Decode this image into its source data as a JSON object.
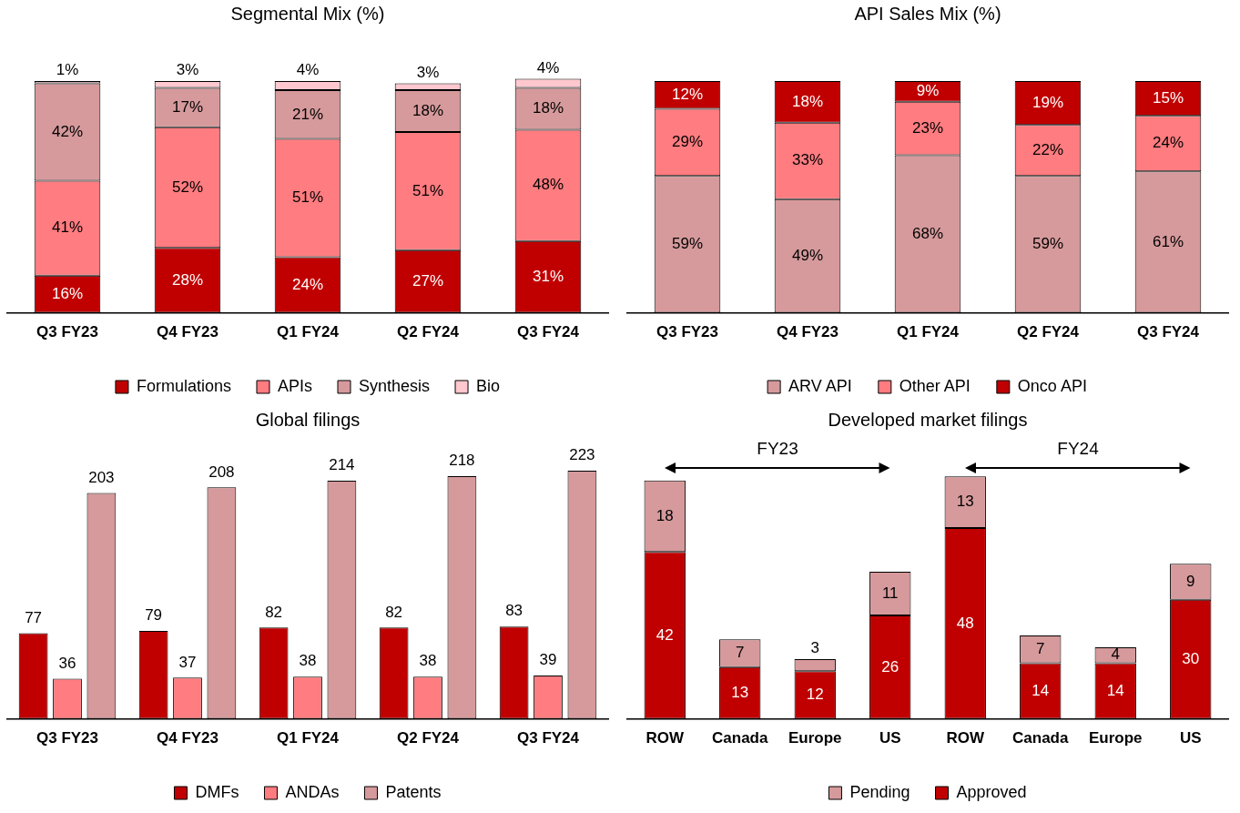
{
  "chart_data": [
    {
      "type": "bar",
      "title": "Segmental Mix (%)",
      "categories": [
        "Q3 FY23",
        "Q4 FY23",
        "Q1 FY24",
        "Q2 FY24",
        "Q3 FY24"
      ],
      "stacked": true,
      "legend": "bottom",
      "grid": false,
      "tick_labels": "x",
      "series": [
        {
          "name": "Formulations",
          "color": "#c00000",
          "values": [
            16,
            28,
            24,
            27,
            31
          ],
          "value_labels": [
            "16%",
            "28%",
            "24%",
            "27%",
            "31%"
          ]
        },
        {
          "name": "APIs",
          "color": "#ff7c80",
          "values": [
            41,
            52,
            51,
            51,
            48
          ],
          "value_labels": [
            "41%",
            "52%",
            "51%",
            "51%",
            "48%"
          ]
        },
        {
          "name": "Synthesis",
          "color": "#d69a9c",
          "values": [
            42,
            17,
            21,
            18,
            18
          ],
          "value_labels": [
            "42%",
            "17%",
            "21%",
            "18%",
            "18%"
          ]
        },
        {
          "name": "Bio",
          "color": "#ffc7ce",
          "values": [
            1,
            3,
            4,
            3,
            4
          ],
          "value_labels": [
            "1%",
            "3%",
            "4%",
            "3%",
            "4%"
          ]
        }
      ]
    },
    {
      "type": "bar",
      "title": "API Sales Mix (%)",
      "categories": [
        "Q3 FY23",
        "Q4 FY23",
        "Q1 FY24",
        "Q2 FY24",
        "Q3 FY24"
      ],
      "stacked": true,
      "legend": "bottom",
      "grid": false,
      "tick_labels": "x",
      "series": [
        {
          "name": "ARV API",
          "color": "#d69a9c",
          "values": [
            59,
            49,
            68,
            59,
            61
          ],
          "value_labels": [
            "59%",
            "49%",
            "68%",
            "59%",
            "61%"
          ]
        },
        {
          "name": "Other API",
          "color": "#ff7c80",
          "values": [
            29,
            33,
            23,
            22,
            24
          ],
          "value_labels": [
            "29%",
            "33%",
            "23%",
            "22%",
            "24%"
          ]
        },
        {
          "name": "Onco API",
          "color": "#c00000",
          "values": [
            12,
            18,
            9,
            19,
            15
          ],
          "value_labels": [
            "12%",
            "18%",
            "9%",
            "19%",
            "15%"
          ]
        }
      ]
    },
    {
      "type": "bar",
      "title": "Global filings",
      "categories": [
        "Q3 FY23",
        "Q4 FY23",
        "Q1 FY24",
        "Q2 FY24",
        "Q3 FY24"
      ],
      "legend": "bottom",
      "grid": false,
      "tick_labels": "x",
      "data_labels": true,
      "series": [
        {
          "name": "DMFs",
          "color": "#c00000",
          "values": [
            77,
            79,
            82,
            82,
            83
          ]
        },
        {
          "name": "ANDAs",
          "color": "#ff7c80",
          "values": [
            36,
            37,
            38,
            38,
            39
          ]
        },
        {
          "name": "Patents",
          "color": "#d69a9c",
          "values": [
            203,
            208,
            214,
            218,
            223
          ]
        }
      ]
    },
    {
      "type": "bar",
      "title": "Developed market filings",
      "categories": [
        "ROW",
        "Canada",
        "Europe",
        "US",
        "ROW",
        "Canada",
        "Europe",
        "US"
      ],
      "stacked": true,
      "legend": "bottom",
      "grid": false,
      "tick_labels": "x",
      "data_labels": true,
      "annotations": [
        "FY23",
        "FY24"
      ],
      "series": [
        {
          "name": "Approved",
          "color": "#c00000",
          "values": [
            42,
            13,
            12,
            26,
            48,
            14,
            14,
            30
          ]
        },
        {
          "name": "Pending",
          "color": "#d69a9c",
          "values": [
            18,
            7,
            3,
            11,
            13,
            7,
            4,
            9
          ]
        }
      ]
    }
  ]
}
